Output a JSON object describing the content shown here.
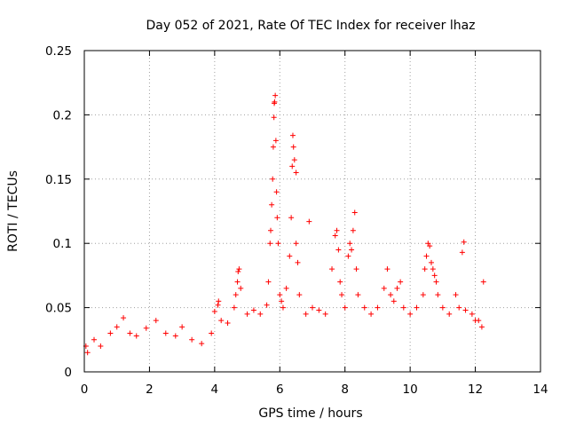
{
  "chart_data": {
    "type": "scatter",
    "title": "Day 052 of 2021, Rate Of TEC Index for receiver lhaz",
    "xlabel": "GPS time / hours",
    "ylabel": "ROTI / TECUs",
    "xlim": [
      0,
      14
    ],
    "ylim": [
      0,
      0.25
    ],
    "xticks": [
      0,
      2,
      4,
      6,
      8,
      10,
      12,
      14
    ],
    "xtick_labels": [
      "0",
      "2",
      "4",
      "6",
      "8",
      "10",
      "12",
      "14"
    ],
    "yticks": [
      0,
      0.05,
      0.1,
      0.15,
      0.2,
      0.25
    ],
    "ytick_labels": [
      "0",
      "0.05",
      "0.1",
      "0.15",
      "0.2",
      "0.25"
    ],
    "grid": true,
    "marker": "+",
    "color": "#ff0000",
    "series": [
      {
        "name": "ROTI",
        "points": [
          [
            0.05,
            0.02
          ],
          [
            0.1,
            0.015
          ],
          [
            0.3,
            0.025
          ],
          [
            0.5,
            0.02
          ],
          [
            0.8,
            0.03
          ],
          [
            1.0,
            0.035
          ],
          [
            1.2,
            0.042
          ],
          [
            1.4,
            0.03
          ],
          [
            1.6,
            0.028
          ],
          [
            1.9,
            0.034
          ],
          [
            2.2,
            0.04
          ],
          [
            2.5,
            0.03
          ],
          [
            2.8,
            0.028
          ],
          [
            3.0,
            0.035
          ],
          [
            3.3,
            0.025
          ],
          [
            3.6,
            0.022
          ],
          [
            3.9,
            0.03
          ],
          [
            4.0,
            0.047
          ],
          [
            4.1,
            0.052
          ],
          [
            4.12,
            0.055
          ],
          [
            4.2,
            0.04
          ],
          [
            4.4,
            0.038
          ],
          [
            4.6,
            0.05
          ],
          [
            4.65,
            0.06
          ],
          [
            4.7,
            0.07
          ],
          [
            4.72,
            0.078
          ],
          [
            4.75,
            0.08
          ],
          [
            4.8,
            0.065
          ],
          [
            5.0,
            0.045
          ],
          [
            5.2,
            0.048
          ],
          [
            5.4,
            0.045
          ],
          [
            5.6,
            0.052
          ],
          [
            5.65,
            0.07
          ],
          [
            5.7,
            0.1
          ],
          [
            5.72,
            0.11
          ],
          [
            5.75,
            0.13
          ],
          [
            5.78,
            0.15
          ],
          [
            5.8,
            0.175
          ],
          [
            5.82,
            0.198
          ],
          [
            5.83,
            0.209
          ],
          [
            5.84,
            0.21
          ],
          [
            5.86,
            0.215
          ],
          [
            5.88,
            0.18
          ],
          [
            5.9,
            0.14
          ],
          [
            5.92,
            0.12
          ],
          [
            5.95,
            0.1
          ],
          [
            6.0,
            0.06
          ],
          [
            6.05,
            0.055
          ],
          [
            6.1,
            0.05
          ],
          [
            6.2,
            0.065
          ],
          [
            6.3,
            0.09
          ],
          [
            6.35,
            0.12
          ],
          [
            6.38,
            0.16
          ],
          [
            6.4,
            0.184
          ],
          [
            6.42,
            0.175
          ],
          [
            6.45,
            0.165
          ],
          [
            6.5,
            0.155
          ],
          [
            6.5,
            0.1
          ],
          [
            6.55,
            0.085
          ],
          [
            6.6,
            0.06
          ],
          [
            6.8,
            0.045
          ],
          [
            6.9,
            0.117
          ],
          [
            7.0,
            0.05
          ],
          [
            7.2,
            0.048
          ],
          [
            7.4,
            0.045
          ],
          [
            7.6,
            0.08
          ],
          [
            7.7,
            0.106
          ],
          [
            7.75,
            0.11
          ],
          [
            7.8,
            0.095
          ],
          [
            7.85,
            0.07
          ],
          [
            7.9,
            0.06
          ],
          [
            8.0,
            0.05
          ],
          [
            8.1,
            0.09
          ],
          [
            8.15,
            0.1
          ],
          [
            8.2,
            0.095
          ],
          [
            8.25,
            0.11
          ],
          [
            8.3,
            0.124
          ],
          [
            8.35,
            0.08
          ],
          [
            8.4,
            0.06
          ],
          [
            8.6,
            0.05
          ],
          [
            8.8,
            0.045
          ],
          [
            9.0,
            0.05
          ],
          [
            9.2,
            0.065
          ],
          [
            9.3,
            0.08
          ],
          [
            9.4,
            0.06
          ],
          [
            9.5,
            0.055
          ],
          [
            9.6,
            0.065
          ],
          [
            9.7,
            0.07
          ],
          [
            9.8,
            0.05
          ],
          [
            10.0,
            0.045
          ],
          [
            10.2,
            0.05
          ],
          [
            10.4,
            0.06
          ],
          [
            10.45,
            0.08
          ],
          [
            10.5,
            0.09
          ],
          [
            10.55,
            0.1
          ],
          [
            10.6,
            0.098
          ],
          [
            10.65,
            0.085
          ],
          [
            10.7,
            0.08
          ],
          [
            10.75,
            0.075
          ],
          [
            10.8,
            0.07
          ],
          [
            10.85,
            0.06
          ],
          [
            11.0,
            0.05
          ],
          [
            11.2,
            0.045
          ],
          [
            11.4,
            0.06
          ],
          [
            11.5,
            0.05
          ],
          [
            11.6,
            0.093
          ],
          [
            11.65,
            0.101
          ],
          [
            11.7,
            0.048
          ],
          [
            11.9,
            0.045
          ],
          [
            12.0,
            0.04
          ],
          [
            12.1,
            0.04
          ],
          [
            12.2,
            0.035
          ],
          [
            12.25,
            0.07
          ]
        ]
      }
    ]
  }
}
